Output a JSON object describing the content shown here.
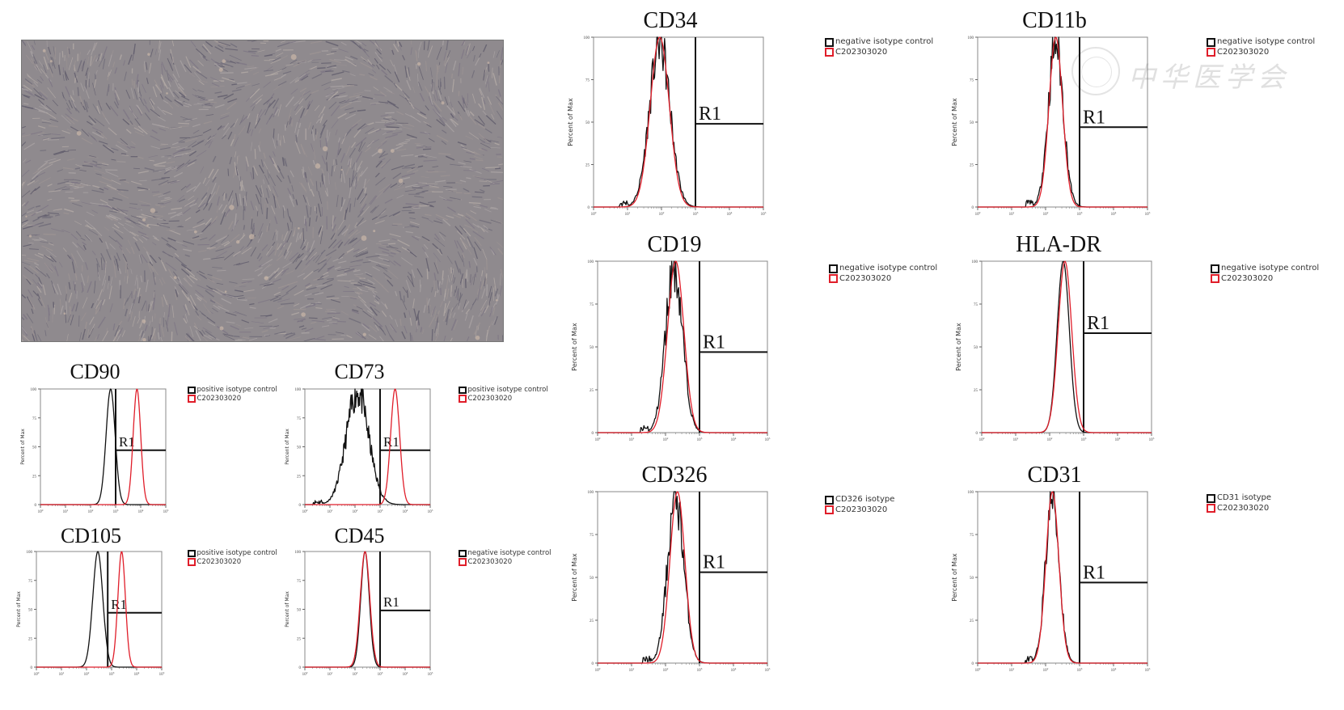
{
  "colors": {
    "control": "#111111",
    "sample": "#e01e2a",
    "gate": "#111111",
    "axis": "#555555"
  },
  "microscopy": {
    "description_name": "cell-culture-micrograph"
  },
  "watermark": {
    "text": "中华医学会"
  },
  "chart_data": [
    {
      "id": "CD90",
      "type": "line",
      "title": "CD90",
      "ylabel": "Percent of Max",
      "x_scale": "log",
      "xlim": [
        1,
        100000
      ],
      "ylim": [
        0,
        100
      ],
      "gate": {
        "label": "R1",
        "x_start": 1000,
        "level": 47
      },
      "series": [
        {
          "name": "positive isotype control",
          "color": "#111111",
          "peak_log": 2.8,
          "width": 0.18,
          "pattern": "sharp"
        },
        {
          "name": "C202303020",
          "color": "#e01e2a",
          "peak_log": 3.85,
          "width": 0.15,
          "pattern": "sharp"
        }
      ]
    },
    {
      "id": "CD73",
      "type": "line",
      "title": "CD73",
      "ylabel": "Percent of Max",
      "x_scale": "log",
      "xlim": [
        1,
        100000
      ],
      "ylim": [
        0,
        100
      ],
      "gate": {
        "label": "R1",
        "x_start": 1000,
        "level": 47
      },
      "series": [
        {
          "name": "positive isotype control",
          "color": "#111111",
          "peak_log": 2.1,
          "width": 0.45,
          "pattern": "noisy"
        },
        {
          "name": "C202303020",
          "color": "#e01e2a",
          "peak_log": 3.6,
          "width": 0.18,
          "pattern": "sharp"
        }
      ]
    },
    {
      "id": "CD105",
      "type": "line",
      "title": "CD105",
      "ylabel": "Percent of Max",
      "x_scale": "log",
      "xlim": [
        1,
        100000
      ],
      "ylim": [
        0,
        100
      ],
      "gate": {
        "label": "R1",
        "x_start": 700,
        "level": 47
      },
      "series": [
        {
          "name": "positive isotype control",
          "color": "#111111",
          "peak_log": 2.45,
          "width": 0.2,
          "pattern": "sharp"
        },
        {
          "name": "C202303020",
          "color": "#e01e2a",
          "peak_log": 3.4,
          "width": 0.15,
          "pattern": "sharp"
        }
      ]
    },
    {
      "id": "CD45",
      "type": "line",
      "title": "CD45",
      "ylabel": "Percent of Max",
      "x_scale": "log",
      "xlim": [
        1,
        100000
      ],
      "ylim": [
        0,
        100
      ],
      "gate": {
        "label": "R1",
        "x_start": 1000,
        "level": 49
      },
      "series": [
        {
          "name": "negative isotype control",
          "color": "#111111",
          "peak_log": 2.4,
          "width": 0.17,
          "pattern": "sharp"
        },
        {
          "name": "C202303020",
          "color": "#e01e2a",
          "peak_log": 2.4,
          "width": 0.19,
          "pattern": "sharp"
        }
      ]
    },
    {
      "id": "CD34",
      "type": "line",
      "title": "CD34",
      "ylabel": "Percent of Max",
      "x_scale": "log",
      "xlim": [
        1,
        100000
      ],
      "ylim": [
        0,
        100
      ],
      "gate": {
        "label": "R1",
        "x_start": 1000,
        "level": 49
      },
      "series": [
        {
          "name": "negative isotype control",
          "color": "#111111",
          "peak_log": 1.95,
          "width": 0.3,
          "pattern": "noisy"
        },
        {
          "name": "C202303020",
          "color": "#e01e2a",
          "peak_log": 1.95,
          "width": 0.28,
          "pattern": "smooth"
        }
      ]
    },
    {
      "id": "CD11b",
      "type": "line",
      "title": "CD11b",
      "ylabel": "Percent of Max",
      "x_scale": "log",
      "xlim": [
        1,
        100000
      ],
      "ylim": [
        0,
        100
      ],
      "gate": {
        "label": "R1",
        "x_start": 1000,
        "level": 47
      },
      "series": [
        {
          "name": "negative isotype control",
          "color": "#111111",
          "peak_log": 2.3,
          "width": 0.22,
          "pattern": "noisy"
        },
        {
          "name": "C202303020",
          "color": "#e01e2a",
          "peak_log": 2.3,
          "width": 0.2,
          "pattern": "smooth"
        }
      ]
    },
    {
      "id": "CD19",
      "type": "line",
      "title": "CD19",
      "ylabel": "Percent of Max",
      "x_scale": "log",
      "xlim": [
        1,
        100000
      ],
      "ylim": [
        0,
        100
      ],
      "gate": {
        "label": "R1",
        "x_start": 1000,
        "level": 47
      },
      "series": [
        {
          "name": "negative isotype control",
          "color": "#111111",
          "peak_log": 2.25,
          "width": 0.25,
          "pattern": "noisy"
        },
        {
          "name": "C202303020",
          "color": "#e01e2a",
          "peak_log": 2.3,
          "width": 0.24,
          "pattern": "smooth"
        }
      ]
    },
    {
      "id": "HLA-DR",
      "type": "line",
      "title": "HLA-DR",
      "ylabel": "Percent of Max",
      "x_scale": "log",
      "xlim": [
        1,
        100000
      ],
      "ylim": [
        0,
        100
      ],
      "gate": {
        "label": "R1",
        "x_start": 1000,
        "level": 58
      },
      "series": [
        {
          "name": "negative isotype control",
          "color": "#111111",
          "peak_log": 2.4,
          "width": 0.18,
          "pattern": "sharp"
        },
        {
          "name": "C202303020",
          "color": "#e01e2a",
          "peak_log": 2.45,
          "width": 0.2,
          "pattern": "smooth"
        }
      ]
    },
    {
      "id": "CD326",
      "type": "line",
      "title": "CD326",
      "ylabel": "Percent of Max",
      "x_scale": "log",
      "xlim": [
        1,
        100000
      ],
      "ylim": [
        0,
        100
      ],
      "gate": {
        "label": "R1",
        "x_start": 1000,
        "level": 53
      },
      "series": [
        {
          "name": "CD326 isotype",
          "color": "#111111",
          "peak_log": 2.3,
          "width": 0.24,
          "pattern": "noisy"
        },
        {
          "name": "C202303020",
          "color": "#e01e2a",
          "peak_log": 2.35,
          "width": 0.22,
          "pattern": "smooth"
        }
      ]
    },
    {
      "id": "CD31",
      "type": "line",
      "title": "CD31",
      "ylabel": "Percent of Max",
      "x_scale": "log",
      "xlim": [
        1,
        100000
      ],
      "ylim": [
        0,
        100
      ],
      "gate": {
        "label": "R1",
        "x_start": 1000,
        "level": 47
      },
      "series": [
        {
          "name": "CD31 isotype",
          "color": "#111111",
          "peak_log": 2.2,
          "width": 0.2,
          "pattern": "noisy"
        },
        {
          "name": "C202303020",
          "color": "#e01e2a",
          "peak_log": 2.2,
          "width": 0.19,
          "pattern": "smooth"
        }
      ]
    }
  ]
}
